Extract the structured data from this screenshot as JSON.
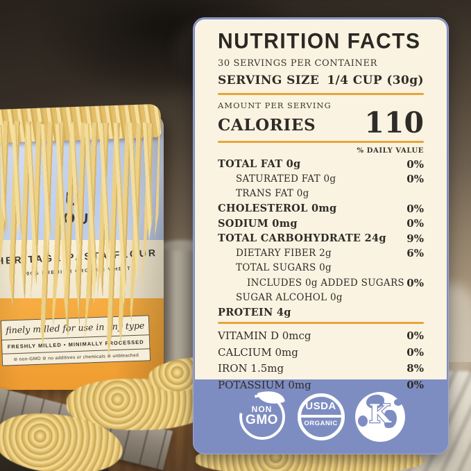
{
  "colors": {
    "card_background": "#FAF3E2",
    "band_blue": "#7E8DC1",
    "divider_orange": "#E8A43C",
    "text_dark": "#2F2B26",
    "bag_blue": "#C7D6F1",
    "bag_orange": "#F3A438",
    "noodle_yellow": "#ECD085"
  },
  "label": {
    "title": "NUTRITION FACTS",
    "servings_per_container": "30 SERVINGS PER CONTAINER",
    "serving_size_label": "SERVING SIZE",
    "serving_size_value": "1/4 CUP (30g)",
    "amount_per_serving": "AMOUNT PER SERVING",
    "calories_label": "CALORIES",
    "calories_value": "110",
    "daily_value_header": "% DAILY VALUE",
    "rows": [
      {
        "label": "TOTAL FAT 0g",
        "value": "0%"
      },
      {
        "label": "SATURATED FAT 0g",
        "value": "0%"
      },
      {
        "label": "TRANS FAT 0g",
        "value": ""
      },
      {
        "label": "CHOLESTEROL 0mg",
        "value": "0%"
      },
      {
        "label": "SODIUM 0mg",
        "value": "0%"
      },
      {
        "label": "TOTAL CARBOHYDRATE 24g",
        "value": "9%"
      },
      {
        "label": "DIETARY FIBER 2g",
        "value": "6%"
      },
      {
        "label": "TOTAL SUGARS 0g",
        "value": ""
      },
      {
        "label": "INCLUDES 0g ADDED SUGARS",
        "value": "0%"
      },
      {
        "label": "SUGAR ALCOHOL 0g",
        "value": ""
      },
      {
        "label": "PROTEIN 4g",
        "value": ""
      }
    ],
    "vitamins": [
      {
        "label": "VITAMIN D 0mcg",
        "value": "0%"
      },
      {
        "label": "CALCIUM 0mg",
        "value": "0%"
      },
      {
        "label": "IRON 1.5mg",
        "value": "8%"
      },
      {
        "label": "POTASSIUM 0mg",
        "value": "0%"
      }
    ],
    "badges": {
      "non_gmo_line1": "NON",
      "non_gmo_line2": "GMO",
      "usda_line1": "USDA",
      "usda_line2": "ORGANIC",
      "kosher_letter": "K"
    }
  },
  "bag": {
    "brand_fragment_line1": "U",
    "brand_fragment_line2": ".OU",
    "band_title": "HERITAGE PASTA FLOUR",
    "band_subtitle": "100% PREMIUM ORGANIC WHEAT",
    "panel_line1": "finely milled for use in any type",
    "panel_line2": "FRESHLY MILLED  •  MINIMALLY PROCESSED",
    "panel_line3": "⊘ non-GMO   ⊘ no additives or chemicals   ⊘ unbleached"
  }
}
